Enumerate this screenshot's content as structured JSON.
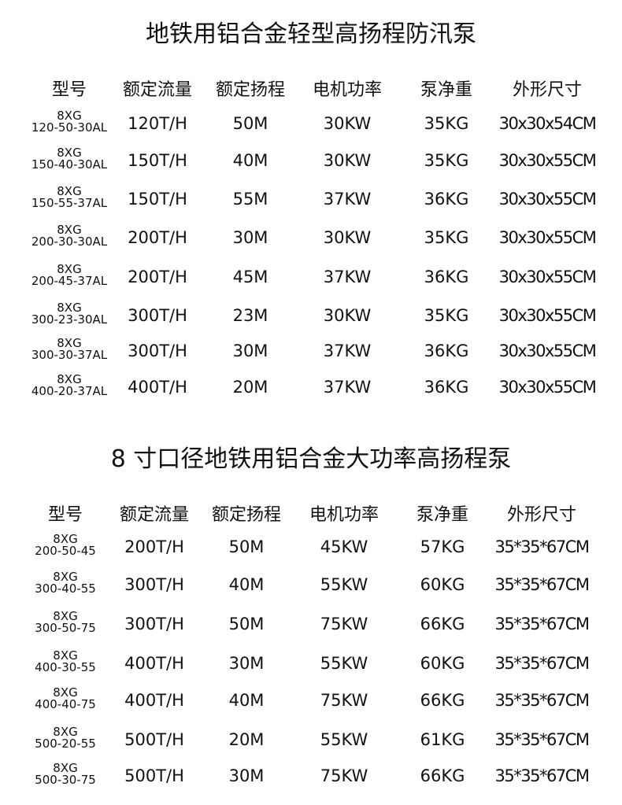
{
  "tables": [
    {
      "title": "地铁用铝合金轻型高扬程防汛泵",
      "headers": [
        "型号",
        "额定流量",
        "额定扬程",
        "电机功率",
        "泵净重",
        "外形尺寸"
      ],
      "rows": [
        {
          "series": "8XG",
          "model": "120-50-30AL",
          "flow": "120T/H",
          "head": "50M",
          "power": "30KW",
          "weight": "35KG",
          "size": "30x30x54CM"
        },
        {
          "series": "8XG",
          "model": "150-40-30AL",
          "flow": "150T/H",
          "head": "40M",
          "power": "30KW",
          "weight": "35KG",
          "size": "30x30x55CM"
        },
        {
          "series": "8XG",
          "model": "150-55-37AL",
          "flow": "150T/H",
          "head": "55M",
          "power": "37KW",
          "weight": "36KG",
          "size": "30x30x55CM"
        },
        {
          "series": "8XG",
          "model": "200-30-30AL",
          "flow": "200T/H",
          "head": "30M",
          "power": "30KW",
          "weight": "35KG",
          "size": "30x30x55CM"
        },
        {
          "series": "8XG",
          "model": "200-45-37AL",
          "flow": "200T/H",
          "head": "45M",
          "power": "37KW",
          "weight": "36KG",
          "size": "30x30x55CM"
        },
        {
          "series": "8XG",
          "model": "300-23-30AL",
          "flow": "300T/H",
          "head": "23M",
          "power": "30KW",
          "weight": "35KG",
          "size": "30x30x55CM"
        },
        {
          "series": "8XG",
          "model": "300-30-37AL",
          "flow": "300T/H",
          "head": "30M",
          "power": "37KW",
          "weight": "36KG",
          "size": "30x30x55CM"
        },
        {
          "series": "8XG",
          "model": "400-20-37AL",
          "flow": "400T/H",
          "head": "20M",
          "power": "37KW",
          "weight": "36KG",
          "size": "30x30x55CM"
        }
      ]
    },
    {
      "title": "8 寸口径地铁用铝合金大功率高扬程泵",
      "headers": [
        "型号",
        "额定流量",
        "额定扬程",
        "电机功率",
        "泵净重",
        "外形尺寸"
      ],
      "rows": [
        {
          "series": "8XG",
          "model": "200-50-45",
          "flow": "200T/H",
          "head": "50M",
          "power": "45KW",
          "weight": "57KG",
          "size": "35*35*67CM"
        },
        {
          "series": "8XG",
          "model": "300-40-55",
          "flow": "300T/H",
          "head": "40M",
          "power": "55KW",
          "weight": "60KG",
          "size": "35*35*67CM"
        },
        {
          "series": "8XG",
          "model": "300-50-75",
          "flow": "300T/H",
          "head": "50M",
          "power": "75KW",
          "weight": "66KG",
          "size": "35*35*67CM"
        },
        {
          "series": "8XG",
          "model": "400-30-55",
          "flow": "400T/H",
          "head": "30M",
          "power": "55KW",
          "weight": "60KG",
          "size": "35*35*67CM"
        },
        {
          "series": "8XG",
          "model": "400-40-75",
          "flow": "400T/H",
          "head": "40M",
          "power": "75KW",
          "weight": "66KG",
          "size": "35*35*67CM"
        },
        {
          "series": "8XG",
          "model": "500-20-55",
          "flow": "500T/H",
          "head": "20M",
          "power": "55KW",
          "weight": "61KG",
          "size": "35*35*67CM"
        },
        {
          "series": "8XG",
          "model": "500-30-75",
          "flow": "500T/H",
          "head": "30M",
          "power": "75KW",
          "weight": "66KG",
          "size": "35*35*67CM"
        }
      ]
    }
  ]
}
